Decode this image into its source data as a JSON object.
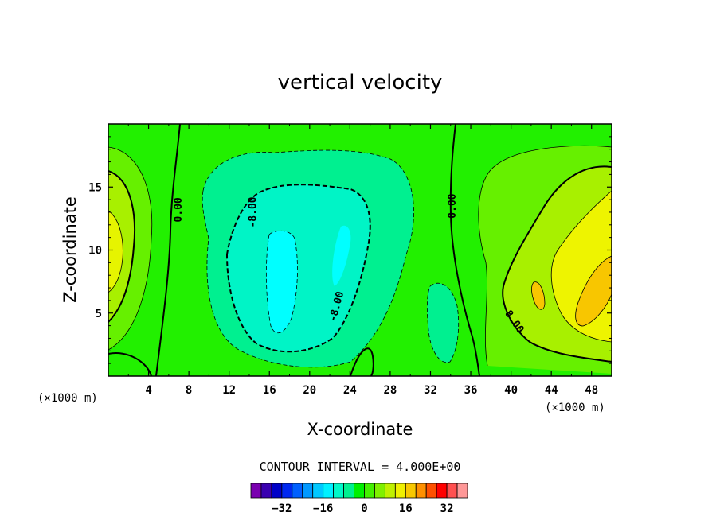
{
  "chart_data": {
    "type": "heatmap",
    "subtype": "filled-contour",
    "title": "vertical velocity",
    "xlabel": "X-coordinate",
    "ylabel": "Z-coordinate",
    "x_unit_left": "(×1000 m)",
    "x_unit_right": "(×1000 m)",
    "xlim": [
      0,
      50
    ],
    "ylim": [
      0,
      20
    ],
    "x_ticks": [
      4,
      8,
      12,
      16,
      20,
      24,
      28,
      32,
      36,
      40,
      44,
      48
    ],
    "x_tick_labels": [
      "4",
      "8",
      "12",
      "16",
      "20",
      "24",
      "28",
      "32",
      "36",
      "40",
      "44",
      "48"
    ],
    "y_ticks": [
      5,
      10,
      15
    ],
    "y_tick_labels": [
      "5",
      "10",
      "15"
    ],
    "contour_interval_text": "CONTOUR INTERVAL = 4.000E+00",
    "contour_labels": [
      {
        "text": "0.00",
        "x": 7.0,
        "z": 13.2,
        "rotate": -90
      },
      {
        "text": "-8.00",
        "x": 14.4,
        "z": 13.0,
        "rotate": -90
      },
      {
        "text": "-8.00",
        "x": 22.7,
        "z": 5.5,
        "rotate": -75
      },
      {
        "text": "0.00",
        "x": 34.2,
        "z": 13.5,
        "rotate": -90
      },
      {
        "text": "8.00",
        "x": 40.3,
        "z": 4.3,
        "rotate": 55
      }
    ],
    "colorbar": {
      "levels": [
        -40,
        -36,
        -32,
        -28,
        -24,
        -20,
        -16,
        -12,
        -8,
        -4,
        0,
        4,
        8,
        12,
        16,
        20,
        24,
        28,
        32,
        36
      ],
      "colors": [
        "#7a00b0",
        "#3a00b0",
        "#0000c8",
        "#0028f0",
        "#0060ff",
        "#0098ff",
        "#00c8ff",
        "#00f0ff",
        "#00f8c8",
        "#00f090",
        "#00f000",
        "#44f000",
        "#80f000",
        "#c0f000",
        "#f0f000",
        "#f8c800",
        "#ff9000",
        "#ff5000",
        "#ff0000",
        "#ff5050",
        "#ff9898"
      ],
      "tick_values": [
        -32,
        -16,
        0,
        16,
        32
      ],
      "tick_labels": [
        "−32",
        "−16",
        "0",
        "16",
        "32"
      ]
    },
    "grid": false
  }
}
